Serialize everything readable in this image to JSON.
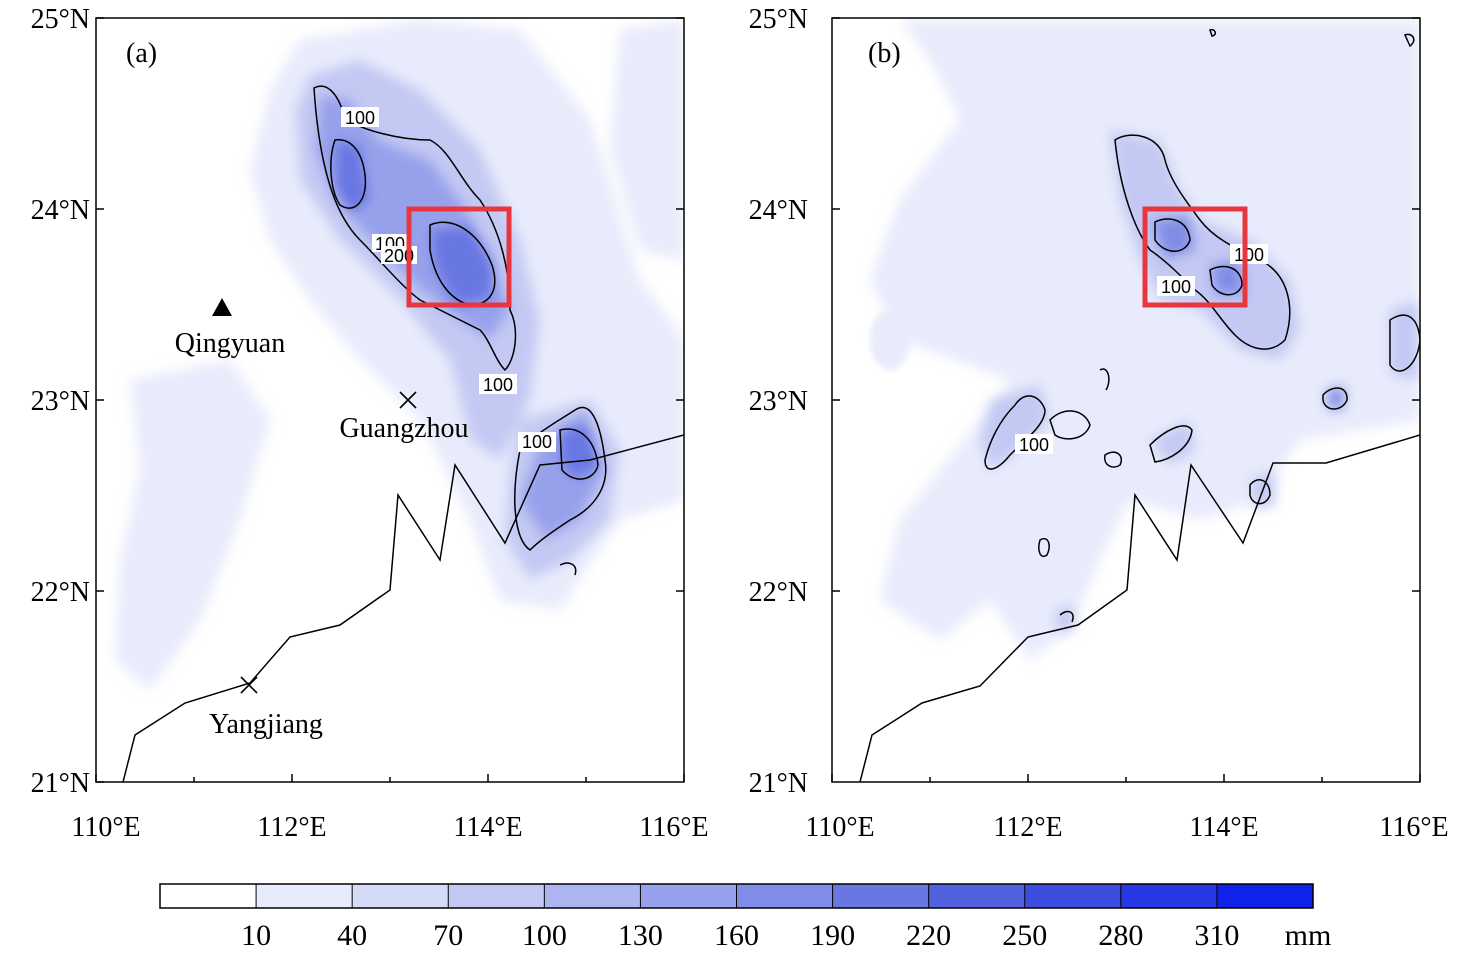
{
  "panels": [
    {
      "tag": "(a)",
      "lat_ticks": [
        "25°N",
        "24°N",
        "23°N",
        "22°N",
        "21°N"
      ],
      "lon_ticks": [
        "110°E",
        "112°E",
        "114°E",
        "116°E"
      ],
      "cities": [
        {
          "name": "Qingyuan",
          "marker": "triangle-icon",
          "lon": 111.25,
          "lat": 23.5
        },
        {
          "name": "Guangzhou",
          "marker": "cross-icon",
          "lon": 113.2,
          "lat": 23.0
        },
        {
          "name": "Yangjiang",
          "marker": "cross-icon",
          "lon": 111.55,
          "lat": 21.5
        }
      ],
      "contour_labels": [
        {
          "text": "100",
          "lon": 112.7,
          "lat": 24.48
        },
        {
          "text": "100",
          "lon": 113.0,
          "lat": 23.84
        },
        {
          "text": "200",
          "lon": 113.1,
          "lat": 23.77
        },
        {
          "text": "100",
          "lon": 114.15,
          "lat": 23.08
        },
        {
          "text": "100",
          "lon": 114.5,
          "lat": 22.78
        }
      ],
      "box": {
        "lon": [
          113.2,
          114.2
        ],
        "lat": [
          23.5,
          24.0
        ],
        "color": "#e8363f"
      }
    },
    {
      "tag": "(b)",
      "lat_ticks": [
        "25°N",
        "24°N",
        "23°N",
        "22°N",
        "21°N"
      ],
      "lon_ticks": [
        "110°E",
        "112°E",
        "114°E",
        "116°E"
      ],
      "cities": [],
      "contour_labels": [
        {
          "text": "100",
          "lon": 114.25,
          "lat": 23.71
        },
        {
          "text": "100",
          "lon": 113.5,
          "lat": 23.5
        },
        {
          "text": "100",
          "lon": 112.05,
          "lat": 22.76
        }
      ],
      "box": {
        "lon": [
          113.2,
          114.2
        ],
        "lat": [
          23.5,
          24.0
        ],
        "color": "#e8363f"
      }
    }
  ],
  "colorbar": {
    "levels": [
      "10",
      "40",
      "70",
      "100",
      "130",
      "160",
      "190",
      "220",
      "250",
      "280",
      "310"
    ],
    "unit": "mm",
    "colors": [
      "#ffffff",
      "#e8ebfb",
      "#d5daf7",
      "#c3c9f3",
      "#acb5ef",
      "#97a1eb",
      "#808de7",
      "#6977e3",
      "#5261df",
      "#3c4de0",
      "#2738e4",
      "#1023ea"
    ]
  }
}
